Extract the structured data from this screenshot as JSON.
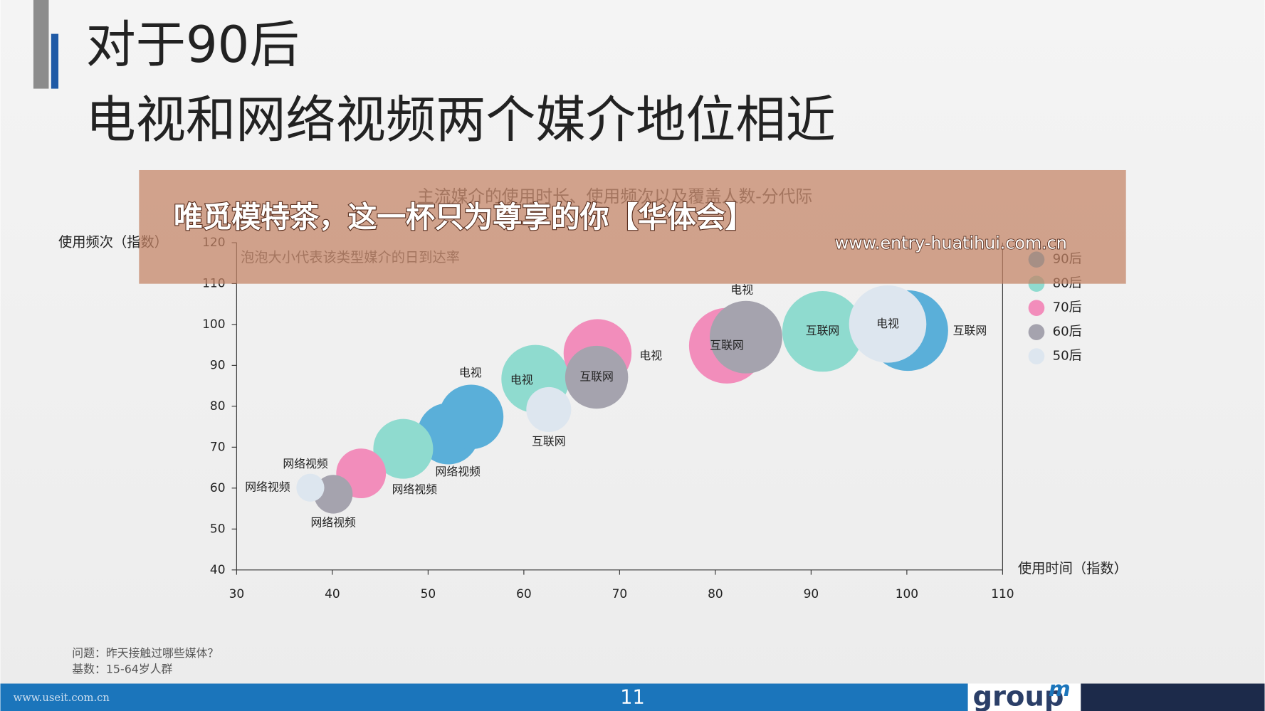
{
  "slide": {
    "title": [
      "对于90后",
      "电视和网络视频两个媒介地位相近"
    ],
    "notes": [
      "问题：昨天接触过哪些媒体？",
      "基数：15-64岁人群"
    ],
    "page_number": "11",
    "logo": "group",
    "logo_sup": "m",
    "watermark": "www.useit.com.cn"
  },
  "overlay": {
    "text": "唯觅模特茶，这一杯只为尊享的你【华体会】",
    "url": "www.entry-huatihui.com.cn"
  },
  "chart_data": {
    "type": "bubble",
    "title": "主流媒介的使用时长、使用频次以及覆盖人数-分代际",
    "subtitle": "泡泡大小代表该类型媒介的日到达率",
    "x_label": "使用时间（指数）",
    "y_label": "使用频次（指数）",
    "xlim": [
      30,
      110
    ],
    "xticks": [
      30,
      40,
      50,
      60,
      70,
      80,
      90,
      100,
      110
    ],
    "ylim": [
      40,
      120
    ],
    "yticks": [
      40,
      50,
      60,
      70,
      80,
      90,
      100,
      110,
      120
    ],
    "series": [
      {
        "name": "90后",
        "color": "#5aafd9",
        "labels": [
          "网络视频",
          "电视",
          "互联网"
        ],
        "x": [
          52.1,
          54.5,
          100.1
        ],
        "y": [
          73.3,
          77.4,
          98.5
        ],
        "size": [
          58,
          64,
          100
        ]
      },
      {
        "name": "80后",
        "color": "#8fdbcf",
        "labels": [
          "网络视频",
          "电视",
          "互联网"
        ],
        "x": [
          47.4,
          61.2,
          91.2
        ],
        "y": [
          69.6,
          86.7,
          98.3
        ],
        "size": [
          55,
          71,
          100
        ]
      },
      {
        "name": "70后",
        "color": "#f28dbb",
        "labels": [
          "网络视频",
          "电视",
          "互联网"
        ],
        "x": [
          43.0,
          67.7,
          81.2
        ],
        "y": [
          63.6,
          93.0,
          94.8
        ],
        "size": [
          38,
          71,
          88
        ]
      },
      {
        "name": "60后",
        "color": "#a5a3ae",
        "labels": [
          "网络视频",
          "互联网",
          "电视"
        ],
        "x": [
          40.1,
          67.6,
          83.2
        ],
        "y": [
          58.5,
          87.1,
          96.9
        ],
        "size": [
          23,
          61,
          81
        ]
      },
      {
        "name": "50后",
        "color": "#dde6ef",
        "labels": [
          "网络视频",
          "互联网",
          "电视"
        ],
        "x": [
          37.7,
          62.6,
          98.0
        ],
        "y": [
          60.1,
          79.2,
          100.1
        ],
        "size": [
          12,
          31,
          92
        ]
      }
    ]
  }
}
